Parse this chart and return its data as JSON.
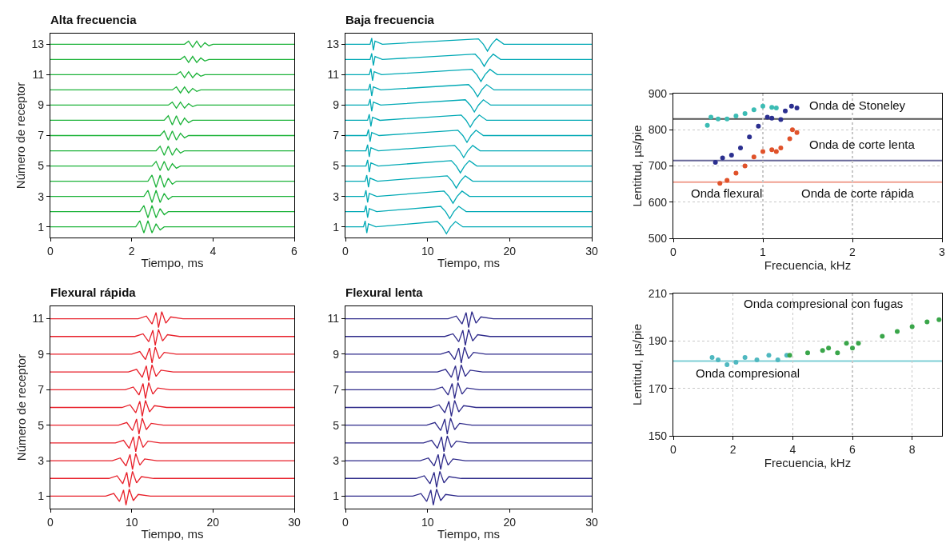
{
  "chart_data": [
    {
      "type": "line",
      "title": "Alta frecuencia",
      "xlabel": "Tiempo, ms",
      "ylabel": "Número de receptor",
      "xlim": [
        0,
        6
      ],
      "xticks": [
        0,
        2,
        4,
        6
      ],
      "ylim": [
        0.3,
        13.7
      ],
      "yticks": [
        1,
        3,
        5,
        7,
        9,
        11,
        13
      ],
      "grid": false,
      "series": [
        {
          "color": "#1db33a",
          "x": [
            0,
            2.1,
            2.2,
            2.3,
            2.4,
            2.5,
            2.6,
            2.7,
            2.8,
            6
          ],
          "values": [
            1,
            1,
            1.4,
            0.6,
            1.4,
            0.6,
            1.2,
            0.8,
            1,
            1
          ]
        },
        {
          "color": "#1db33a",
          "x": [
            0,
            2.2,
            2.3,
            2.4,
            2.5,
            2.6,
            2.7,
            2.8,
            2.9,
            6
          ],
          "values": [
            2,
            2,
            2.4,
            1.6,
            2.4,
            1.6,
            2.2,
            1.8,
            2,
            2
          ]
        },
        {
          "color": "#1db33a",
          "x": [
            0,
            2.3,
            2.4,
            2.5,
            2.6,
            2.7,
            2.8,
            2.9,
            3.0,
            6
          ],
          "values": [
            3,
            3,
            3.4,
            2.6,
            3.4,
            2.6,
            3.2,
            2.8,
            3,
            3
          ]
        },
        {
          "color": "#1db33a",
          "x": [
            0,
            2.4,
            2.5,
            2.6,
            2.7,
            2.8,
            2.9,
            3.0,
            3.1,
            6
          ],
          "values": [
            4,
            4,
            4.4,
            3.6,
            4.4,
            3.6,
            4.2,
            3.8,
            4,
            4
          ]
        },
        {
          "color": "#1db33a",
          "x": [
            0,
            2.5,
            2.6,
            2.7,
            2.8,
            2.9,
            3.0,
            3.1,
            3.2,
            6
          ],
          "values": [
            5,
            5,
            5.3,
            4.7,
            5.3,
            4.7,
            5.15,
            4.85,
            5,
            5
          ]
        },
        {
          "color": "#1db33a",
          "x": [
            0,
            2.6,
            2.7,
            2.8,
            2.9,
            3.0,
            3.1,
            3.2,
            3.3,
            6
          ],
          "values": [
            6,
            6,
            6.3,
            5.7,
            6.3,
            5.7,
            6.15,
            5.85,
            6,
            6
          ]
        },
        {
          "color": "#1db33a",
          "x": [
            0,
            2.7,
            2.8,
            2.9,
            3.0,
            3.1,
            3.2,
            3.3,
            3.4,
            6
          ],
          "values": [
            7,
            7,
            7.3,
            6.7,
            7.3,
            6.7,
            7.15,
            6.85,
            7,
            7
          ]
        },
        {
          "color": "#1db33a",
          "x": [
            0,
            2.8,
            2.9,
            3.0,
            3.1,
            3.2,
            3.3,
            3.4,
            3.5,
            6
          ],
          "values": [
            8,
            8,
            8.3,
            7.7,
            8.3,
            7.7,
            8.15,
            7.85,
            8,
            8
          ]
        },
        {
          "color": "#1db33a",
          "x": [
            0,
            2.9,
            3.0,
            3.1,
            3.2,
            3.3,
            3.4,
            3.5,
            3.6,
            6
          ],
          "values": [
            9,
            9,
            9.2,
            8.8,
            9.2,
            8.8,
            9.1,
            8.9,
            9,
            9
          ]
        },
        {
          "color": "#1db33a",
          "x": [
            0,
            3.0,
            3.1,
            3.2,
            3.3,
            3.4,
            3.5,
            3.6,
            3.7,
            6
          ],
          "values": [
            10,
            10,
            10.2,
            9.8,
            10.2,
            9.8,
            10.1,
            9.9,
            10,
            10
          ]
        },
        {
          "color": "#1db33a",
          "x": [
            0,
            3.1,
            3.2,
            3.3,
            3.4,
            3.5,
            3.6,
            3.7,
            3.8,
            6
          ],
          "values": [
            11,
            11,
            11.2,
            10.8,
            11.2,
            10.8,
            11.1,
            10.9,
            11,
            11
          ]
        },
        {
          "color": "#1db33a",
          "x": [
            0,
            3.2,
            3.3,
            3.4,
            3.5,
            3.6,
            3.7,
            3.8,
            3.9,
            6
          ],
          "values": [
            12,
            12,
            12.2,
            11.8,
            12.2,
            11.8,
            12.1,
            11.9,
            12,
            12
          ]
        },
        {
          "color": "#1db33a",
          "x": [
            0,
            3.3,
            3.4,
            3.5,
            3.6,
            3.7,
            3.8,
            3.9,
            4.0,
            6
          ],
          "values": [
            13,
            13,
            13.2,
            12.8,
            13.2,
            12.8,
            13.1,
            12.9,
            13,
            13
          ]
        }
      ]
    },
    {
      "type": "line",
      "title": "Baja frecuencia",
      "xlabel": "Tiempo, ms",
      "xlim": [
        0,
        30
      ],
      "xticks": [
        0,
        10,
        20,
        30
      ],
      "ylim": [
        0.3,
        13.7
      ],
      "yticks": [
        1,
        3,
        5,
        7,
        9,
        11,
        13
      ],
      "grid": false,
      "series": [
        {
          "color": "#00a9b5",
          "x": [
            0,
            2.2,
            2.4,
            2.6,
            2.8,
            3.7,
            11.2,
            11.8,
            12.3,
            12.8,
            13.4,
            14.3,
            30
          ],
          "values": [
            1,
            1,
            1.4,
            0.6,
            1.2,
            1,
            1.35,
            1,
            0.55,
            1,
            1.35,
            1,
            1
          ]
        },
        {
          "color": "#00a9b5",
          "x": [
            0,
            2.3,
            2.5,
            2.7,
            2.9,
            3.8,
            11.6,
            12.2,
            12.7,
            13.2,
            13.8,
            14.7,
            30
          ],
          "values": [
            2,
            2,
            2.4,
            1.6,
            2.2,
            2,
            2.35,
            2,
            1.55,
            2,
            2.35,
            2,
            2
          ]
        },
        {
          "color": "#00a9b5",
          "x": [
            0,
            2.3,
            2.5,
            2.7,
            2.9,
            3.8,
            12,
            12.6,
            13.1,
            13.6,
            14.2,
            15.1,
            30
          ],
          "values": [
            3,
            3,
            3.4,
            2.6,
            3.2,
            3,
            3.35,
            3,
            2.55,
            3,
            3.35,
            3,
            3
          ]
        },
        {
          "color": "#00a9b5",
          "x": [
            0,
            2.4,
            2.6,
            2.8,
            3,
            3.9,
            12.4,
            13,
            13.5,
            14,
            14.6,
            15.5,
            30
          ],
          "values": [
            4,
            4,
            4.4,
            3.6,
            4.2,
            4,
            4.35,
            4,
            3.55,
            4,
            4.35,
            4,
            4
          ]
        },
        {
          "color": "#00a9b5",
          "x": [
            0,
            2.5,
            2.7,
            2.9,
            3.1,
            4,
            12.9,
            13.5,
            14,
            14.5,
            15.1,
            16,
            30
          ],
          "values": [
            5,
            5,
            5.4,
            4.6,
            5.2,
            5,
            5.35,
            5,
            4.55,
            5,
            5.35,
            5,
            5
          ]
        },
        {
          "color": "#00a9b5",
          "x": [
            0,
            2.5,
            2.7,
            2.9,
            3.1,
            4,
            13.3,
            13.9,
            14.4,
            14.9,
            15.5,
            16.4,
            30
          ],
          "values": [
            6,
            6,
            6.4,
            5.6,
            6.2,
            6,
            6.35,
            6,
            5.55,
            6,
            6.35,
            6,
            6
          ]
        },
        {
          "color": "#00a9b5",
          "x": [
            0,
            2.6,
            2.8,
            3,
            3.2,
            4.1,
            13.7,
            14.3,
            14.8,
            15.3,
            15.9,
            16.8,
            30
          ],
          "values": [
            7,
            7,
            7.4,
            6.6,
            7.2,
            7,
            7.35,
            7,
            6.55,
            7,
            7.35,
            7,
            7
          ]
        },
        {
          "color": "#00a9b5",
          "x": [
            0,
            2.7,
            2.9,
            3.1,
            3.3,
            4.2,
            14.1,
            14.7,
            15.2,
            15.7,
            16.3,
            17.2,
            30
          ],
          "values": [
            8,
            8,
            8.4,
            7.6,
            8.2,
            8,
            8.35,
            8,
            7.55,
            8,
            8.35,
            8,
            8
          ]
        },
        {
          "color": "#00a9b5",
          "x": [
            0,
            2.8,
            3,
            3.2,
            3.4,
            4.3,
            14.6,
            15.2,
            15.7,
            16.2,
            16.8,
            17.7,
            30
          ],
          "values": [
            9,
            9,
            9.4,
            8.6,
            9.2,
            9,
            9.35,
            9,
            8.55,
            9,
            9.35,
            9,
            9
          ]
        },
        {
          "color": "#00a9b5",
          "x": [
            0,
            2.8,
            3,
            3.2,
            3.4,
            4.3,
            15,
            15.6,
            16.1,
            16.6,
            17.2,
            18.1,
            30
          ],
          "values": [
            10,
            10,
            10.4,
            9.6,
            10.2,
            10,
            10.35,
            10,
            9.55,
            10,
            10.35,
            10,
            10
          ]
        },
        {
          "color": "#00a9b5",
          "x": [
            0,
            2.9,
            3.1,
            3.3,
            3.5,
            4.4,
            15.4,
            16,
            16.5,
            17,
            17.6,
            18.5,
            30
          ],
          "values": [
            11,
            11,
            11.4,
            10.6,
            11.2,
            11,
            11.35,
            11,
            10.55,
            11,
            11.35,
            11,
            11
          ]
        },
        {
          "color": "#00a9b5",
          "x": [
            0,
            3,
            3.2,
            3.4,
            3.6,
            4.5,
            15.8,
            16.4,
            16.9,
            17.4,
            18,
            18.9,
            30
          ],
          "values": [
            12,
            12,
            12.4,
            11.6,
            12.2,
            12,
            12.35,
            12,
            11.55,
            12,
            12.35,
            12,
            12
          ]
        },
        {
          "color": "#00a9b5",
          "x": [
            0,
            3,
            3.2,
            3.4,
            3.6,
            4.5,
            16.2,
            16.8,
            17.3,
            17.8,
            18.4,
            19.3,
            30
          ],
          "values": [
            13,
            13,
            13.4,
            12.6,
            13.2,
            13,
            13.35,
            13,
            12.55,
            13,
            13.35,
            13,
            13
          ]
        }
      ]
    },
    {
      "type": "line",
      "title": "Flexural rápida",
      "xlabel": "Tiempo, ms",
      "ylabel": "Número de receptor",
      "xlim": [
        0,
        30
      ],
      "xticks": [
        0,
        10,
        20,
        30
      ],
      "ylim": [
        0.3,
        11.7
      ],
      "yticks": [
        1,
        3,
        5,
        7,
        9,
        11
      ],
      "grid": false,
      "series": [
        {
          "color": "#e8202a",
          "x": [
            0,
            6.8,
            7.8,
            8.5,
            9,
            9.3,
            9.7,
            10.2,
            10.8,
            12.3,
            30
          ],
          "values": [
            1,
            1,
            1.15,
            0.7,
            1.35,
            0.5,
            1.4,
            0.75,
            1.1,
            1,
            1
          ]
        },
        {
          "color": "#e8202a",
          "x": [
            0,
            7.2,
            8.2,
            8.9,
            9.4,
            9.7,
            10.1,
            10.6,
            11.2,
            12.7,
            30
          ],
          "values": [
            2,
            2,
            2.15,
            1.7,
            2.35,
            1.5,
            2.4,
            1.75,
            2.1,
            2,
            2
          ]
        },
        {
          "color": "#e8202a",
          "x": [
            0,
            7.6,
            8.6,
            9.3,
            9.8,
            10.1,
            10.5,
            11,
            11.6,
            13.1,
            30
          ],
          "values": [
            3,
            3,
            3.15,
            2.7,
            3.35,
            2.5,
            3.4,
            2.75,
            3.1,
            3,
            3
          ]
        },
        {
          "color": "#e8202a",
          "x": [
            0,
            8,
            9,
            9.7,
            10.2,
            10.5,
            10.9,
            11.4,
            12,
            13.5,
            30
          ],
          "values": [
            4,
            4,
            4.15,
            3.7,
            4.35,
            3.5,
            4.4,
            3.75,
            4.1,
            4,
            4
          ]
        },
        {
          "color": "#e8202a",
          "x": [
            0,
            8.4,
            9.4,
            10.1,
            10.6,
            10.9,
            11.3,
            11.8,
            12.4,
            13.9,
            30
          ],
          "values": [
            5,
            5,
            5.15,
            4.7,
            5.35,
            4.5,
            5.4,
            4.75,
            5.1,
            5,
            5
          ]
        },
        {
          "color": "#e8202a",
          "x": [
            0,
            8.8,
            9.8,
            10.5,
            11,
            11.3,
            11.7,
            12.2,
            12.8,
            14.3,
            30
          ],
          "values": [
            6,
            6,
            6.15,
            5.7,
            6.35,
            5.5,
            6.4,
            5.75,
            6.1,
            6,
            6
          ]
        },
        {
          "color": "#e8202a",
          "x": [
            0,
            9.2,
            10.2,
            10.9,
            11.4,
            11.7,
            12.1,
            12.6,
            13.2,
            14.7,
            30
          ],
          "values": [
            7,
            7,
            7.15,
            6.7,
            7.35,
            6.5,
            7.4,
            6.75,
            7.1,
            7,
            7
          ]
        },
        {
          "color": "#e8202a",
          "x": [
            0,
            9.6,
            10.6,
            11.3,
            11.8,
            12.1,
            12.5,
            13,
            13.6,
            15.1,
            30
          ],
          "values": [
            8,
            8,
            8.15,
            7.7,
            8.35,
            7.5,
            8.4,
            7.75,
            8.1,
            8,
            8
          ]
        },
        {
          "color": "#e8202a",
          "x": [
            0,
            10,
            11,
            11.7,
            12.2,
            12.5,
            12.9,
            13.4,
            14,
            15.5,
            30
          ],
          "values": [
            9,
            9,
            9.15,
            8.7,
            9.35,
            8.5,
            9.4,
            8.75,
            9.1,
            9,
            9
          ]
        },
        {
          "color": "#e8202a",
          "x": [
            0,
            10.4,
            11.4,
            12.1,
            12.6,
            12.9,
            13.3,
            13.8,
            14.4,
            15.9,
            30
          ],
          "values": [
            10,
            10,
            10.15,
            9.7,
            10.35,
            9.5,
            10.4,
            9.75,
            10.1,
            10,
            10
          ]
        },
        {
          "color": "#e8202a",
          "x": [
            0,
            10.8,
            11.8,
            12.5,
            13,
            13.3,
            13.7,
            14.2,
            14.8,
            16.3,
            30
          ],
          "values": [
            11,
            11,
            11.15,
            10.7,
            11.35,
            10.5,
            11.4,
            10.75,
            11.1,
            11,
            11
          ]
        }
      ]
    },
    {
      "type": "line",
      "title": "Flexural lenta",
      "xlabel": "Tiempo, ms",
      "xlim": [
        0,
        30
      ],
      "xticks": [
        0,
        10,
        20,
        30
      ],
      "ylim": [
        0.3,
        11.7
      ],
      "yticks": [
        1,
        3,
        5,
        7,
        9,
        11
      ],
      "grid": false,
      "series": [
        {
          "color": "#2e2a8a",
          "x": [
            0,
            8.2,
            9.2,
            9.9,
            10.4,
            10.7,
            11.1,
            11.6,
            12.2,
            13.7,
            30
          ],
          "values": [
            1,
            1,
            1.15,
            0.7,
            1.35,
            0.5,
            1.4,
            0.75,
            1.1,
            1,
            1
          ]
        },
        {
          "color": "#2e2a8a",
          "x": [
            0,
            8.6,
            9.6,
            10.3,
            10.8,
            11.1,
            11.5,
            12,
            12.6,
            14.1,
            30
          ],
          "values": [
            2,
            2,
            2.15,
            1.7,
            2.35,
            1.5,
            2.4,
            1.75,
            2.1,
            2,
            2
          ]
        },
        {
          "color": "#2e2a8a",
          "x": [
            0,
            9.1,
            10.1,
            10.8,
            11.3,
            11.6,
            12,
            12.5,
            13.1,
            14.6,
            30
          ],
          "values": [
            3,
            3,
            3.15,
            2.7,
            3.35,
            2.5,
            3.4,
            2.75,
            3.1,
            3,
            3
          ]
        },
        {
          "color": "#2e2a8a",
          "x": [
            0,
            9.5,
            10.5,
            11.2,
            11.7,
            12,
            12.4,
            12.9,
            13.5,
            15,
            30
          ],
          "values": [
            4,
            4,
            4.15,
            3.7,
            4.35,
            3.5,
            4.4,
            3.75,
            4.1,
            4,
            4
          ]
        },
        {
          "color": "#2e2a8a",
          "x": [
            0,
            9.9,
            10.9,
            11.6,
            12.1,
            12.4,
            12.8,
            13.3,
            13.9,
            15.4,
            30
          ],
          "values": [
            5,
            5,
            5.15,
            4.7,
            5.35,
            4.5,
            5.4,
            4.75,
            5.1,
            5,
            5
          ]
        },
        {
          "color": "#2e2a8a",
          "x": [
            0,
            10.4,
            11.4,
            12.1,
            12.6,
            12.9,
            13.3,
            13.8,
            14.4,
            15.9,
            30
          ],
          "values": [
            6,
            6,
            6.15,
            5.7,
            6.35,
            5.5,
            6.4,
            5.75,
            6.1,
            6,
            6
          ]
        },
        {
          "color": "#2e2a8a",
          "x": [
            0,
            10.8,
            11.8,
            12.5,
            13,
            13.3,
            13.7,
            14.2,
            14.8,
            16.3,
            30
          ],
          "values": [
            7,
            7,
            7.15,
            6.7,
            7.35,
            6.5,
            7.4,
            6.75,
            7.1,
            7,
            7
          ]
        },
        {
          "color": "#2e2a8a",
          "x": [
            0,
            11.2,
            12.2,
            12.9,
            13.4,
            13.7,
            14.1,
            14.6,
            15.2,
            16.7,
            30
          ],
          "values": [
            8,
            8,
            8.15,
            7.7,
            8.35,
            7.5,
            8.4,
            7.75,
            8.1,
            8,
            8
          ]
        },
        {
          "color": "#2e2a8a",
          "x": [
            0,
            11.6,
            12.6,
            13.3,
            13.8,
            14.1,
            14.5,
            15,
            15.6,
            17.1,
            30
          ],
          "values": [
            9,
            9,
            9.15,
            8.7,
            9.35,
            8.5,
            9.4,
            8.75,
            9.1,
            9,
            9
          ]
        },
        {
          "color": "#2e2a8a",
          "x": [
            0,
            12.1,
            13.1,
            13.8,
            14.3,
            14.6,
            15,
            15.5,
            16.1,
            17.6,
            30
          ],
          "values": [
            10,
            10,
            10.15,
            9.7,
            10.35,
            9.5,
            10.4,
            9.75,
            10.1,
            10,
            10
          ]
        },
        {
          "color": "#2e2a8a",
          "x": [
            0,
            12.5,
            13.5,
            14.2,
            14.7,
            15,
            15.4,
            15.9,
            16.5,
            18,
            30
          ],
          "values": [
            11,
            11,
            11.15,
            10.7,
            11.35,
            10.5,
            11.4,
            10.75,
            11.1,
            11,
            11
          ]
        }
      ]
    },
    {
      "type": "scatter",
      "xlabel": "Frecuencia, kHz",
      "ylabel": "Lentitud, µs/pie",
      "xlim": [
        0,
        3
      ],
      "xticks": [
        0,
        1,
        2,
        3
      ],
      "ylim": [
        500,
        900
      ],
      "yticks": [
        500,
        600,
        700,
        800,
        900
      ],
      "grid": true,
      "marker": "circle",
      "series": [
        {
          "color": "#3cbcb4",
          "x": [
            0.38,
            0.42,
            0.5,
            0.6,
            0.7,
            0.8,
            0.9,
            1.0,
            1.1,
            1.15
          ],
          "values": [
            812,
            835,
            830,
            830,
            838,
            845,
            855,
            865,
            862,
            860
          ]
        },
        {
          "color": "#2b2f8f",
          "x": [
            0.47,
            0.55,
            0.65,
            0.75,
            0.85,
            0.95,
            1.05,
            1.1,
            1.2,
            1.25,
            1.32,
            1.38
          ],
          "values": [
            710,
            722,
            730,
            750,
            780,
            810,
            835,
            832,
            828,
            852,
            865,
            860
          ]
        },
        {
          "color": "#e0522a",
          "x": [
            0.52,
            0.6,
            0.7,
            0.8,
            0.9,
            1.0,
            1.1,
            1.15,
            1.2,
            1.3,
            1.33,
            1.38
          ],
          "values": [
            652,
            660,
            680,
            700,
            725,
            740,
            745,
            740,
            750,
            775,
            800,
            792
          ]
        }
      ],
      "ref_lines": [
        {
          "axis": "y",
          "value": 830,
          "color": "#555555"
        },
        {
          "axis": "y",
          "value": 715,
          "color": "#6a6a9a"
        },
        {
          "axis": "y",
          "value": 655,
          "color": "#f0a090"
        }
      ],
      "annotations": [
        "Onda de Stoneley",
        "Onda de corte lenta",
        "Onda flexural",
        "Onda de corte rápida"
      ]
    },
    {
      "type": "scatter",
      "xlabel": "Frecuencia, kHz",
      "ylabel": "Lentitud, µs/pie",
      "xlim": [
        0,
        9
      ],
      "xticks": [
        0,
        2,
        4,
        6,
        8
      ],
      "ylim": [
        150,
        210
      ],
      "yticks": [
        150,
        170,
        190,
        210
      ],
      "grid": true,
      "marker": "circle",
      "series": [
        {
          "color": "#4fb8c0",
          "x": [
            1.3,
            1.5,
            1.8,
            2.1,
            2.4,
            2.8,
            3.2,
            3.5,
            3.8
          ],
          "values": [
            183,
            182,
            180,
            181,
            183,
            182,
            184,
            182,
            184
          ]
        },
        {
          "color": "#3aa64a",
          "x": [
            3.9,
            4.5,
            5,
            5.2,
            5.5,
            5.8,
            6,
            6.2,
            7,
            7.5,
            8,
            8.5,
            8.9
          ],
          "values": [
            184,
            185,
            186,
            187,
            185,
            189,
            187,
            189,
            192,
            194,
            196,
            198,
            199
          ]
        }
      ],
      "ref_lines": [
        {
          "axis": "y",
          "value": 181.5,
          "color": "#7fcfd6"
        }
      ],
      "annotations": [
        "Onda compresional con fugas",
        "Onda compresional"
      ]
    }
  ]
}
